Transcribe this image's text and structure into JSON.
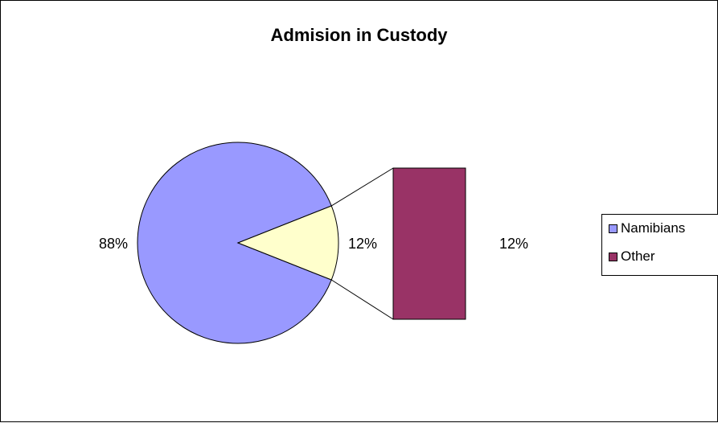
{
  "chart_data": {
    "type": "pie",
    "subtype": "pie-of-bar",
    "title": "Admision in Custody",
    "slices": [
      {
        "label": "Namibians",
        "value": 88,
        "display": "88%",
        "color": "#9999ff"
      },
      {
        "label": "Other",
        "value": 12,
        "display": "12%",
        "color": "#ffffcc"
      }
    ],
    "bar": {
      "label": "Other",
      "value": 12,
      "display": "12%",
      "color": "#993366"
    },
    "legend": {
      "position": "right",
      "entries": [
        {
          "label": "Namibians",
          "color": "#9999ff"
        },
        {
          "label": "Other",
          "color": "#993366"
        }
      ]
    }
  }
}
